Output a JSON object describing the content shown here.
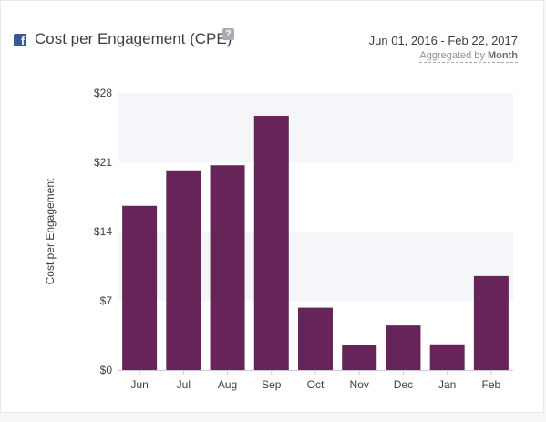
{
  "header": {
    "title": "Cost per Engagement (CPE)",
    "help_glyph": "?",
    "date_range": "Jun 01, 2016 - Feb 22, 2017",
    "aggregation_prefix": "Aggregated by",
    "aggregation_value": "Month",
    "icon": "facebook-icon"
  },
  "chart_data": {
    "type": "bar",
    "categories": [
      "Jun",
      "Jul",
      "Aug",
      "Sep",
      "Oct",
      "Nov",
      "Dec",
      "Jan",
      "Feb"
    ],
    "values": [
      16.6,
      20.1,
      20.7,
      25.7,
      6.3,
      2.5,
      4.5,
      2.6,
      9.5
    ],
    "ylabel": "Cost per Engagement",
    "ylim": [
      0,
      28
    ],
    "yticks": [
      0,
      7,
      14,
      21,
      28
    ],
    "ytick_labels": [
      "$0",
      "$7",
      "$14",
      "$21",
      "$28"
    ],
    "bar_color": "#662459",
    "band_color": "#f5f6fa",
    "grid": false
  }
}
